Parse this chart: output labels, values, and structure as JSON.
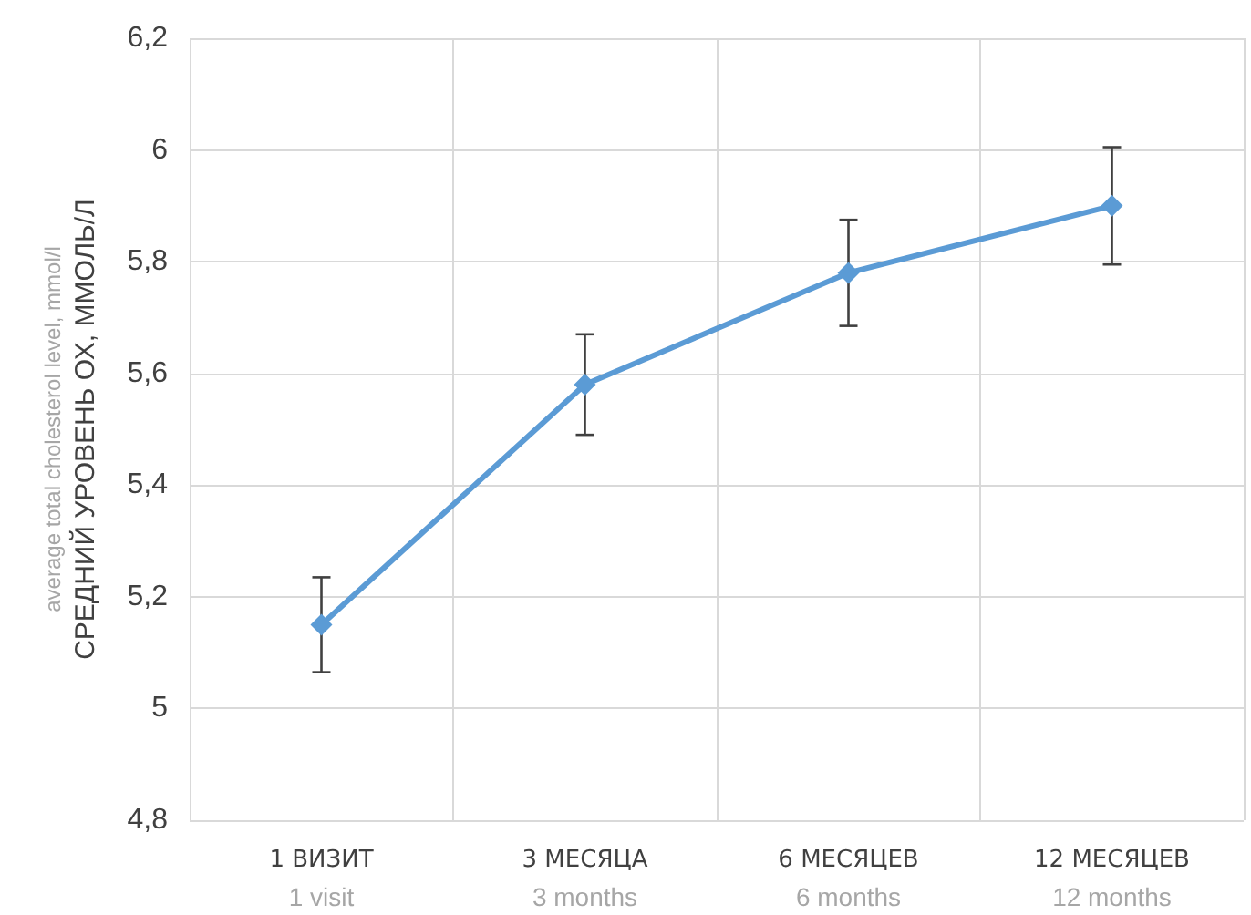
{
  "chart_data": {
    "type": "line",
    "ylabel": "average total cholesterol level, mmol/l\nСРЕДНИЙ УРОВЕНЬ ОХ, ММОЛЬ/Л",
    "categories": [
      "1 ВИЗИТ\n1 visit",
      "3 МЕСЯЦА\n3 months",
      "6 МЕСЯЦЕВ\n6 months",
      "12 МЕСЯЦЕВ\n12 months"
    ],
    "series": [
      {
        "color": "#5b9bd5",
        "values": [
          5.15,
          5.58,
          5.78,
          5.9
        ],
        "errors": [
          0.085,
          0.09,
          0.095,
          0.105
        ]
      }
    ],
    "ylim": [
      4.8,
      6.2
    ],
    "yticks": [
      {
        "value": 4.8,
        "label": "4,8"
      },
      5,
      {
        "value": 5.2,
        "label": "5,2"
      },
      {
        "value": 5.4,
        "label": "5,4"
      },
      {
        "value": 5.6,
        "label": "5,6"
      },
      {
        "value": 5.8,
        "label": "5,8"
      },
      6,
      {
        "value": 6.2,
        "label": "6,2"
      }
    ],
    "grid": true,
    "marker": "diamond",
    "line_style": "solid"
  }
}
